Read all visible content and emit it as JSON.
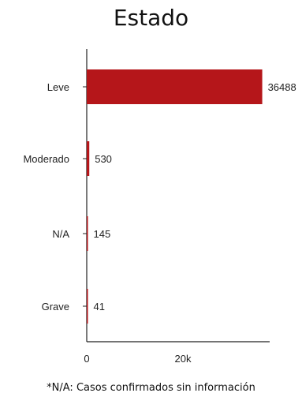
{
  "chart_data": {
    "type": "bar",
    "orientation": "horizontal",
    "title": "Estado",
    "categories": [
      "Leve",
      "Moderado",
      "N/A",
      "Grave"
    ],
    "values": [
      36488,
      530,
      145,
      41
    ],
    "value_labels": [
      "36488",
      "530",
      "145",
      "41"
    ],
    "x_ticks": [
      0,
      20000
    ],
    "x_tick_labels": [
      "0",
      "20k"
    ],
    "xlim": [
      0,
      42000
    ],
    "bar_color": "#b5161a",
    "grid": false,
    "legend": "none"
  },
  "footnote": "*N/A: Casos confirmados sin información"
}
